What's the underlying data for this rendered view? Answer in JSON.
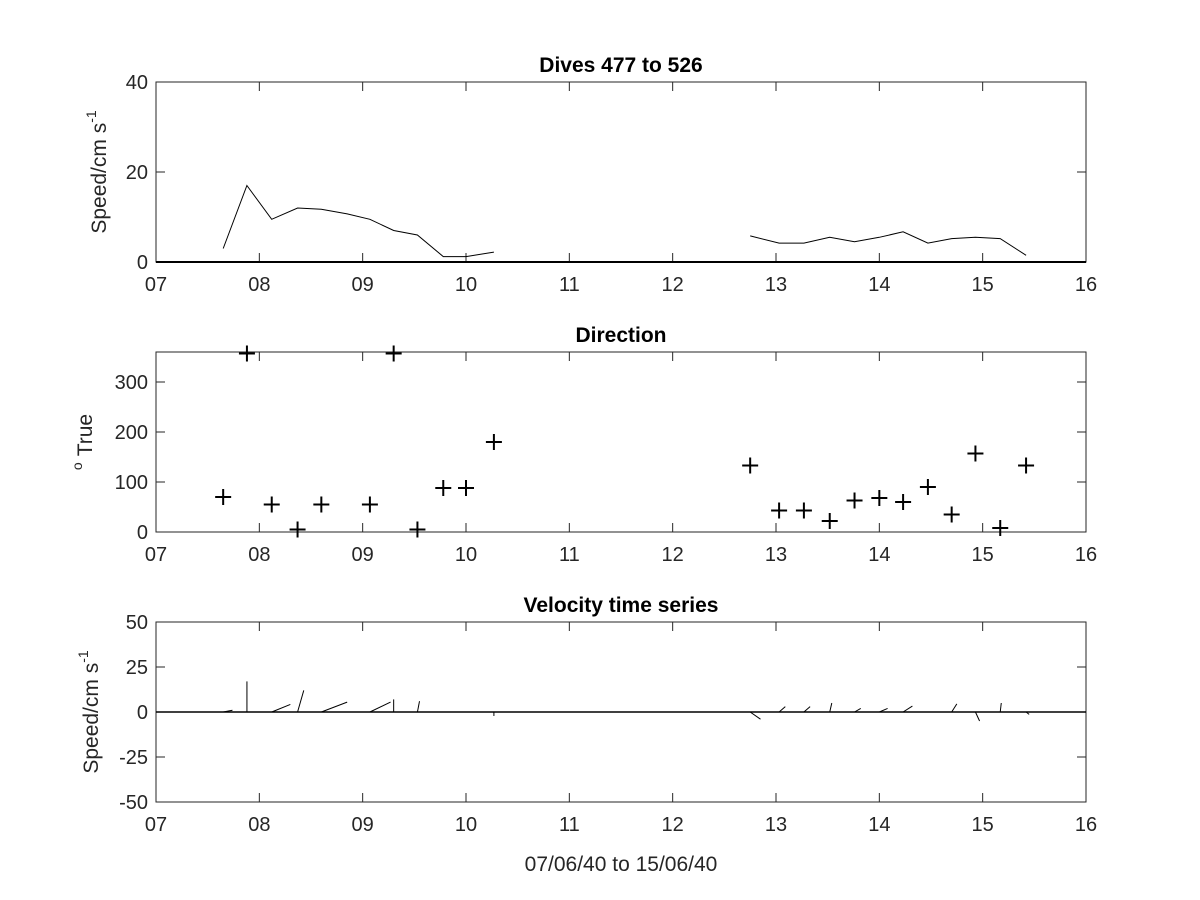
{
  "chart_data": [
    {
      "type": "line",
      "title": "Dives 477 to 526",
      "ylabel": "Speed/cm s",
      "ylabel_superscript": "-1",
      "xlim": [
        7,
        16
      ],
      "ylim": [
        0,
        40
      ],
      "xtick_labels": [
        "07",
        "08",
        "09",
        "10",
        "11",
        "12",
        "13",
        "14",
        "15",
        "16"
      ],
      "ytick_labels": [
        "0",
        "20",
        "40"
      ],
      "yticks": [
        0,
        20,
        40
      ],
      "series": [
        {
          "segments": [
            [
              [
                7.65,
                3
              ],
              [
                7.88,
                17
              ],
              [
                8.12,
                9.5
              ],
              [
                8.37,
                12
              ],
              [
                8.6,
                11.7
              ],
              [
                8.85,
                10.7
              ],
              [
                9.07,
                9.5
              ],
              [
                9.3,
                7
              ],
              [
                9.53,
                6
              ],
              [
                9.78,
                1.2
              ],
              [
                10.0,
                1.2
              ],
              [
                10.27,
                2.2
              ]
            ],
            [
              [
                12.75,
                5.8
              ],
              [
                13.03,
                4.2
              ],
              [
                13.27,
                4.2
              ],
              [
                13.52,
                5.5
              ],
              [
                13.76,
                4.5
              ],
              [
                14.0,
                5.5
              ],
              [
                14.23,
                6.7
              ],
              [
                14.47,
                4.2
              ],
              [
                14.7,
                5.2
              ],
              [
                14.93,
                5.5
              ],
              [
                15.17,
                5.2
              ],
              [
                15.42,
                1.5
              ]
            ]
          ]
        }
      ]
    },
    {
      "type": "scatter",
      "title": "Direction",
      "ylabel": "True",
      "ylabel_superscript": "o",
      "xlim": [
        7,
        16
      ],
      "ylim": [
        0,
        360
      ],
      "xtick_labels": [
        "07",
        "08",
        "09",
        "10",
        "11",
        "12",
        "13",
        "14",
        "15",
        "16"
      ],
      "ytick_labels": [
        "0",
        "100",
        "200",
        "300"
      ],
      "yticks": [
        0,
        100,
        200,
        300
      ],
      "marker": "+",
      "x": [
        7.65,
        7.88,
        8.12,
        8.37,
        8.6,
        9.07,
        9.3,
        9.53,
        9.78,
        10.0,
        10.27,
        12.75,
        13.03,
        13.27,
        13.52,
        13.76,
        14.0,
        14.23,
        14.47,
        14.7,
        14.93,
        15.17,
        15.42
      ],
      "y": [
        70,
        357,
        55,
        5,
        55,
        55,
        357,
        5,
        88,
        88,
        180,
        133,
        43,
        43,
        22,
        63,
        68,
        60,
        90,
        35,
        157,
        8,
        133
      ]
    },
    {
      "type": "line",
      "title": "Velocity time series",
      "ylabel": "Speed/cm s",
      "ylabel_superscript": "-1",
      "xlabel": "07/06/40 to 15/06/40",
      "xlim": [
        7,
        16
      ],
      "ylim": [
        -50,
        50
      ],
      "xtick_labels": [
        "07",
        "08",
        "09",
        "10",
        "11",
        "12",
        "13",
        "14",
        "15",
        "16"
      ],
      "ytick_labels": [
        "-50",
        "-25",
        "0",
        "25",
        "50"
      ],
      "yticks": [
        -50,
        -25,
        0,
        25,
        50
      ],
      "zero_line": true,
      "stick_vectors": [
        {
          "x": 7.65,
          "u": 0.09,
          "v": 1.0
        },
        {
          "x": 7.88,
          "u": 0.0,
          "v": 17.0
        },
        {
          "x": 8.12,
          "u": 0.18,
          "v": 4.2
        },
        {
          "x": 8.37,
          "u": 0.06,
          "v": 12.0
        },
        {
          "x": 8.6,
          "u": 0.25,
          "v": 5.5
        },
        {
          "x": 9.07,
          "u": 0.2,
          "v": 5.5
        },
        {
          "x": 9.3,
          "u": 0.0,
          "v": 7.0
        },
        {
          "x": 9.53,
          "u": 0.02,
          "v": 6.0
        },
        {
          "x": 9.78,
          "u": 0.01,
          "v": 0.0
        },
        {
          "x": 10.0,
          "u": 0.01,
          "v": 0.0
        },
        {
          "x": 10.27,
          "u": 0.0,
          "v": -2.2
        },
        {
          "x": 12.75,
          "u": 0.1,
          "v": -4.0
        },
        {
          "x": 13.03,
          "u": 0.06,
          "v": 3.0
        },
        {
          "x": 13.27,
          "u": 0.06,
          "v": 3.0
        },
        {
          "x": 13.52,
          "u": 0.02,
          "v": 5.0
        },
        {
          "x": 13.76,
          "u": 0.06,
          "v": 2.0
        },
        {
          "x": 14.0,
          "u": 0.08,
          "v": 2.0
        },
        {
          "x": 14.23,
          "u": 0.09,
          "v": 3.3
        },
        {
          "x": 14.47,
          "u": 0.1,
          "v": 0.0
        },
        {
          "x": 14.7,
          "u": 0.05,
          "v": 4.5
        },
        {
          "x": 14.93,
          "u": 0.04,
          "v": -5.0
        },
        {
          "x": 15.17,
          "u": 0.01,
          "v": 5.0
        },
        {
          "x": 15.42,
          "u": 0.03,
          "v": -1.3
        }
      ]
    }
  ]
}
